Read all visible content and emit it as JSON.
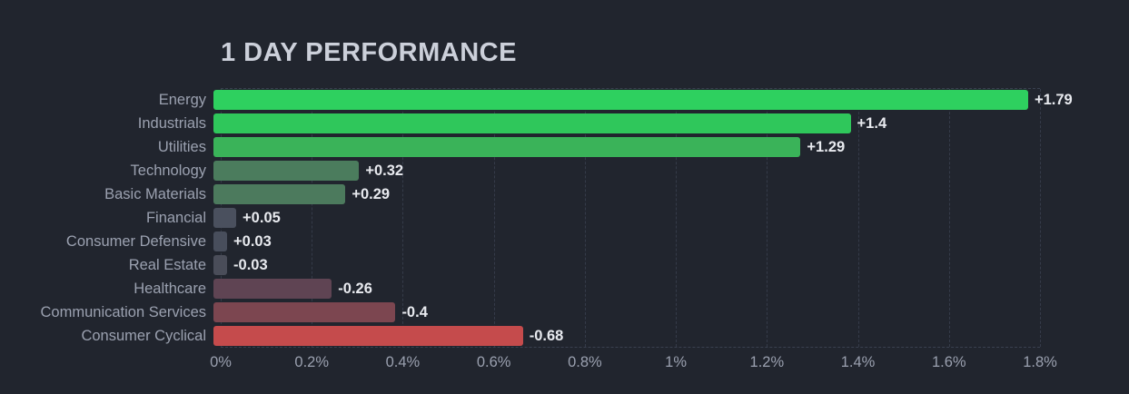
{
  "title": "1 DAY PERFORMANCE",
  "colors": {
    "background": "#21252e",
    "grid": "#353b49",
    "plot_border": "#3a4150",
    "title_text": "#ccd0da",
    "category_text": "#9ba1b0",
    "tick_text": "#9aa0af",
    "value_text": "#e8eaef"
  },
  "chart_data": {
    "type": "bar",
    "orientation": "horizontal",
    "title": "1 DAY PERFORMANCE",
    "xlabel": "",
    "ylabel": "",
    "xlim": [
      0,
      1.8
    ],
    "grid": "dashed-vertical",
    "note": "bars plot absolute magnitude rightward from 0; color encodes sign/intensity",
    "categories": [
      "Energy",
      "Industrials",
      "Utilities",
      "Technology",
      "Basic Materials",
      "Financial",
      "Consumer Defensive",
      "Real Estate",
      "Healthcare",
      "Communication Services",
      "Consumer Cyclical"
    ],
    "values": [
      1.79,
      1.4,
      1.29,
      0.32,
      0.29,
      0.05,
      0.03,
      -0.03,
      -0.26,
      -0.4,
      -0.68
    ],
    "value_labels": [
      "+1.79",
      "+1.4",
      "+1.29",
      "+0.32",
      "+0.29",
      "+0.05",
      "+0.03",
      "-0.03",
      "-0.26",
      "-0.4",
      "-0.68"
    ],
    "bar_colors": [
      "#2ed05f",
      "#2fc75b",
      "#3ab359",
      "#4b7c5d",
      "#4c7a5d",
      "#4a505e",
      "#484e5c",
      "#4a4d59",
      "#5f4453",
      "#7c4650",
      "#c54b4c"
    ],
    "x_ticks": [
      "0%",
      "0.2%",
      "0.4%",
      "0.6%",
      "0.8%",
      "1%",
      "1.2%",
      "1.4%",
      "1.6%",
      "1.8%"
    ],
    "x_tick_values": [
      0,
      0.2,
      0.4,
      0.6,
      0.8,
      1.0,
      1.2,
      1.4,
      1.6,
      1.8
    ]
  }
}
